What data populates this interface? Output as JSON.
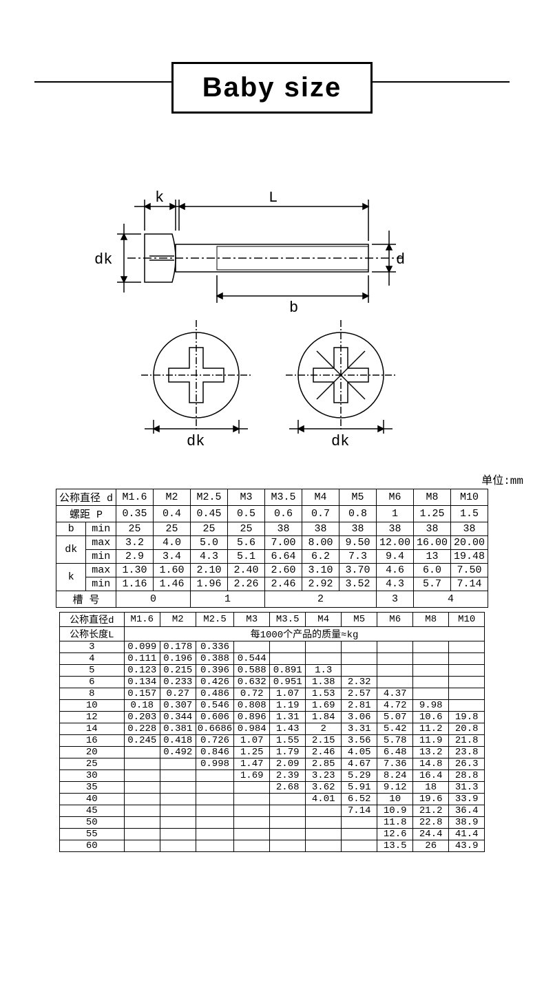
{
  "title": "Baby size",
  "unit_label": "单位:mm",
  "diagram": {
    "labels": {
      "k": "k",
      "L": "L",
      "dk": "dk",
      "d": "d",
      "b": "b"
    }
  },
  "spec_table": {
    "row_labels": {
      "diameter": "公称直径 d",
      "pitch": "螺距    P",
      "b_min": [
        "b",
        "min"
      ],
      "dk": "dk",
      "k": "k",
      "max": "max",
      "min": "min",
      "slot": "槽    号"
    },
    "sizes": [
      "M1.6",
      "M2",
      "M2.5",
      "M3",
      "M3.5",
      "M4",
      "M5",
      "M6",
      "M8",
      "M10"
    ],
    "pitch": [
      "0.35",
      "0.4",
      "0.45",
      "0.5",
      "0.6",
      "0.7",
      "0.8",
      "1",
      "1.25",
      "1.5"
    ],
    "b_min": [
      "25",
      "25",
      "25",
      "25",
      "38",
      "38",
      "38",
      "38",
      "38",
      "38"
    ],
    "dk_max": [
      "3.2",
      "4.0",
      "5.0",
      "5.6",
      "7.00",
      "8.00",
      "9.50",
      "12.00",
      "16.00",
      "20.00"
    ],
    "dk_min": [
      "2.9",
      "3.4",
      "4.3",
      "5.1",
      "6.64",
      "6.2",
      "7.3",
      "9.4",
      "13",
      "19.48"
    ],
    "k_max": [
      "1.30",
      "1.60",
      "2.10",
      "2.40",
      "2.60",
      "3.10",
      "3.70",
      "4.6",
      "6.0",
      "7.50"
    ],
    "k_min": [
      "1.16",
      "1.46",
      "1.96",
      "2.26",
      "2.46",
      "2.92",
      "3.52",
      "4.3",
      "5.7",
      "7.14"
    ],
    "slot": [
      {
        "span": 2,
        "v": "0"
      },
      {
        "span": 2,
        "v": "1"
      },
      {
        "span": 3,
        "v": "2"
      },
      {
        "span": 1,
        "v": "3"
      },
      {
        "span": 2,
        "v": "4"
      }
    ]
  },
  "mass_table": {
    "header_diameter": "公称直径d",
    "header_length": "公称长度L",
    "mass_note": "每1000个产品的质量≈kg",
    "sizes": [
      "M1.6",
      "M2",
      "M2.5",
      "M3",
      "M3.5",
      "M4",
      "M5",
      "M6",
      "M8",
      "M10"
    ],
    "rows": [
      {
        "len": "3",
        "v": [
          "0.099",
          "0.178",
          "0.336",
          "",
          "",
          "",
          "",
          "",
          "",
          ""
        ]
      },
      {
        "len": "4",
        "v": [
          "0.111",
          "0.196",
          "0.388",
          "0.544",
          "",
          "",
          "",
          "",
          "",
          ""
        ]
      },
      {
        "len": "5",
        "v": [
          "0.123",
          "0.215",
          "0.396",
          "0.588",
          "0.891",
          "1.3",
          "",
          "",
          "",
          ""
        ]
      },
      {
        "len": "6",
        "v": [
          "0.134",
          "0.233",
          "0.426",
          "0.632",
          "0.951",
          "1.38",
          "2.32",
          "",
          "",
          ""
        ]
      },
      {
        "len": "8",
        "v": [
          "0.157",
          "0.27",
          "0.486",
          "0.72",
          "1.07",
          "1.53",
          "2.57",
          "4.37",
          "",
          ""
        ]
      },
      {
        "len": "10",
        "v": [
          "0.18",
          "0.307",
          "0.546",
          "0.808",
          "1.19",
          "1.69",
          "2.81",
          "4.72",
          "9.98",
          ""
        ]
      },
      {
        "len": "12",
        "v": [
          "0.203",
          "0.344",
          "0.606",
          "0.896",
          "1.31",
          "1.84",
          "3.06",
          "5.07",
          "10.6",
          "19.8"
        ]
      },
      {
        "len": "14",
        "v": [
          "0.228",
          "0.381",
          "0.6686",
          "0.984",
          "1.43",
          "2",
          "3.31",
          "5.42",
          "11.2",
          "20.8"
        ]
      },
      {
        "len": "16",
        "v": [
          "0.245",
          "0.418",
          "0.726",
          "1.07",
          "1.55",
          "2.15",
          "3.56",
          "5.78",
          "11.9",
          "21.8"
        ]
      },
      {
        "len": "20",
        "v": [
          "",
          "0.492",
          "0.846",
          "1.25",
          "1.79",
          "2.46",
          "4.05",
          "6.48",
          "13.2",
          "23.8"
        ]
      },
      {
        "len": "25",
        "v": [
          "",
          "",
          "0.998",
          "1.47",
          "2.09",
          "2.85",
          "4.67",
          "7.36",
          "14.8",
          "26.3"
        ]
      },
      {
        "len": "30",
        "v": [
          "",
          "",
          "",
          "1.69",
          "2.39",
          "3.23",
          "5.29",
          "8.24",
          "16.4",
          "28.8"
        ]
      },
      {
        "len": "35",
        "v": [
          "",
          "",
          "",
          "",
          "2.68",
          "3.62",
          "5.91",
          "9.12",
          "18",
          "31.3"
        ]
      },
      {
        "len": "40",
        "v": [
          "",
          "",
          "",
          "",
          "",
          "4.01",
          "6.52",
          "10",
          "19.6",
          "33.9"
        ]
      },
      {
        "len": "45",
        "v": [
          "",
          "",
          "",
          "",
          "",
          "",
          "7.14",
          "10.9",
          "21.2",
          "36.4"
        ]
      },
      {
        "len": "50",
        "v": [
          "",
          "",
          "",
          "",
          "",
          "",
          "",
          "11.8",
          "22.8",
          "38.9"
        ]
      },
      {
        "len": "55",
        "v": [
          "",
          "",
          "",
          "",
          "",
          "",
          "",
          "12.6",
          "24.4",
          "41.4"
        ]
      },
      {
        "len": "60",
        "v": [
          "",
          "",
          "",
          "",
          "",
          "",
          "",
          "13.5",
          "26",
          "43.9"
        ]
      }
    ]
  },
  "style": {
    "stroke": "#000000",
    "fill": "none",
    "stroke_width": 1.5,
    "font_family": "SimSun, serif",
    "label_fontsize": 20
  }
}
